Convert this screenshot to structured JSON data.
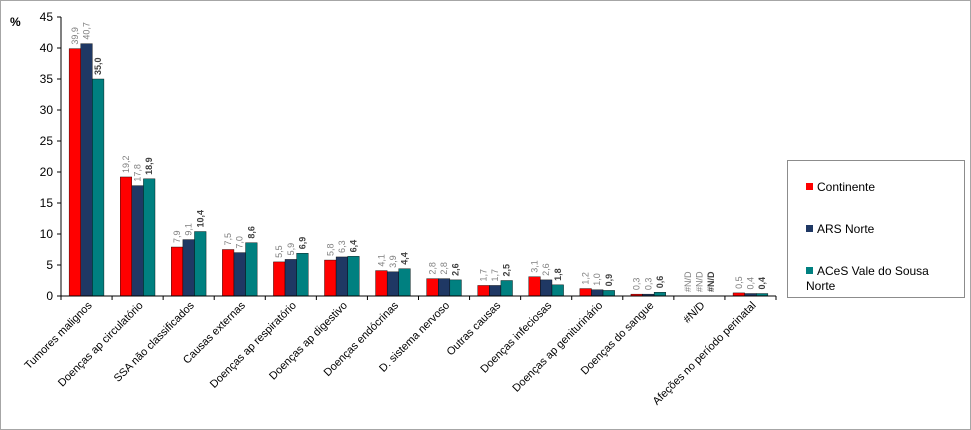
{
  "chart_data": {
    "type": "bar",
    "ylabel": "%",
    "ylim": [
      0,
      45
    ],
    "yticks": [
      "0",
      "5",
      "10",
      "15",
      "20",
      "25",
      "30",
      "35",
      "40",
      "45"
    ],
    "categories": [
      "Tumores malignos",
      "Doenças ap circulatório",
      "SSA não classificados",
      "Causas externas",
      "Doenças ap respiratório",
      "Doenças ap digestivo",
      "Doenças endócrinas",
      "D. sistema nervoso",
      "Outras causas",
      "Doenças infeciosas",
      "Doenças ap geniturinário",
      "Doenças do sangue",
      "#N/D",
      "Afeções no período perinatal"
    ],
    "series": [
      {
        "name": "Continente",
        "color": "#ff0000",
        "values": [
          39.9,
          19.2,
          7.9,
          7.5,
          5.5,
          5.8,
          4.1,
          2.8,
          1.7,
          3.1,
          1.2,
          0.3,
          null,
          0.5
        ],
        "labels": [
          "39,9",
          "19,2",
          "7,9",
          "7,5",
          "5,5",
          "5,8",
          "4,1",
          "2,8",
          "1,7",
          "3,1",
          "1,2",
          "0,3",
          "#N/D",
          "0,5"
        ]
      },
      {
        "name": "ARS Norte",
        "color": "#1f3864",
        "values": [
          40.7,
          17.8,
          9.1,
          7.0,
          5.9,
          6.3,
          3.9,
          2.8,
          1.7,
          2.6,
          1.0,
          0.3,
          null,
          0.4
        ],
        "labels": [
          "40,7",
          "17,8",
          "9,1",
          "7,0",
          "5,9",
          "6,3",
          "3,9",
          "2,8",
          "1,7",
          "2,6",
          "1,0",
          "0,3",
          "#N/D",
          "0,4"
        ]
      },
      {
        "name": "ACeS Vale do Sousa Norte",
        "color": "#008080",
        "values": [
          35.0,
          18.9,
          10.4,
          8.6,
          6.9,
          6.4,
          4.4,
          2.6,
          2.5,
          1.8,
          0.9,
          0.6,
          null,
          0.4
        ],
        "labels": [
          "35,0",
          "18,9",
          "10,4",
          "8,6",
          "6,9",
          "6,4",
          "4,4",
          "2,6",
          "2,5",
          "1,8",
          "0,9",
          "0,6",
          "#N/D",
          "0,4"
        ]
      }
    ],
    "legend_position": "right",
    "grid": false
  },
  "legend": {
    "items": [
      {
        "label": "Continente",
        "color": "#ff0000"
      },
      {
        "label": "ARS Norte",
        "color": "#1f3864"
      },
      {
        "label_line1": "ACeS Vale do Sousa",
        "label_line2": "Norte",
        "color": "#008080"
      }
    ]
  }
}
